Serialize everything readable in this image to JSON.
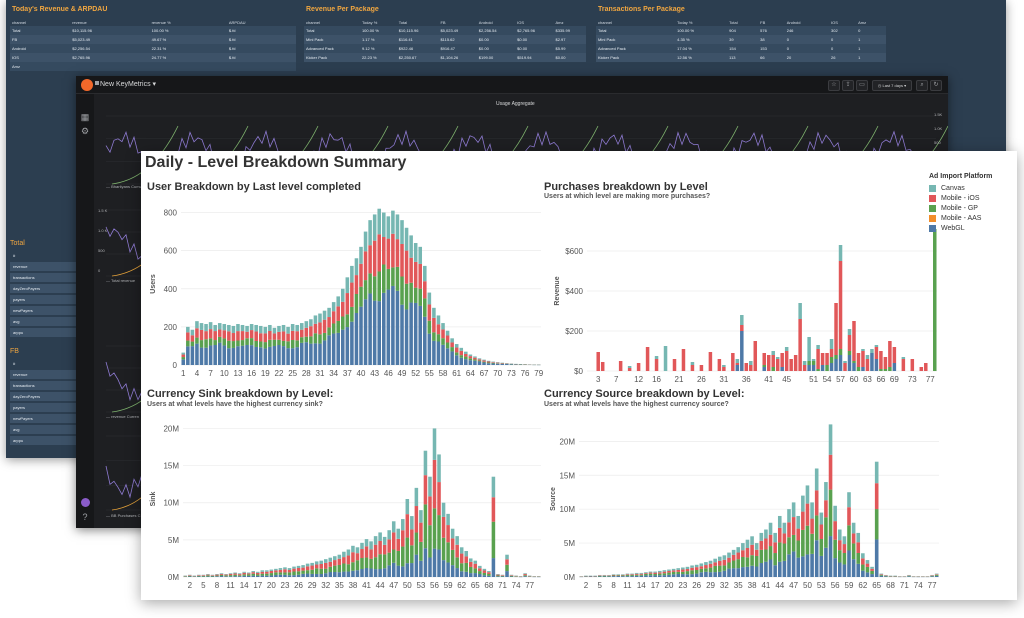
{
  "palette": {
    "Canvas": "#76b7b2",
    "Mobile - iOS": "#e15759",
    "Mobile - GP": "#59a14f",
    "Mobile - AAS": "#f28e2b",
    "WebGL": "#4e79a7"
  },
  "back_dashboard": {
    "panels": [
      {
        "title": "Today's Revenue & ARPDAU",
        "columns": [
          "channel",
          "revenue",
          "revenue %",
          "ARPDAU"
        ],
        "rows": [
          [
            "Total",
            "$10,115.96",
            "100.00 %",
            "$.fd"
          ],
          [
            "FB",
            "$5,023.49",
            "49.67 %",
            "$.fd"
          ],
          [
            "Android",
            "$2,256.54",
            "22.31 %",
            "$.fd"
          ],
          [
            "IOS",
            "$2,765.96",
            "24.77 %",
            "$.fd"
          ],
          [
            "Amz",
            "",
            "",
            ""
          ]
        ]
      },
      {
        "title": "Revenue Per Package",
        "columns": [
          "channel",
          "Today %",
          "Total",
          "FB",
          "Android",
          "IOS",
          "Amz"
        ],
        "rows": [
          [
            "Total",
            "100.00 %",
            "$10,115.96",
            "$5,023.49",
            "$2,256.54",
            "$2,765.96",
            "$335.99"
          ],
          [
            "Mini Pack",
            "1.17 %",
            "$116.41",
            "$115.62",
            "$0.00",
            "$0.00",
            "$2.97"
          ],
          [
            "Advanced Pack",
            "9.12 %",
            "$922.46",
            "$916.47",
            "$0.00",
            "$0.00",
            "$5.99"
          ],
          [
            "Kicker Pack",
            "22.23 %",
            "$2,250.67",
            "$1,104.26",
            "$199.00",
            "$519.94",
            "$0.00"
          ]
        ]
      },
      {
        "title": "Transactions Per Package",
        "columns": [
          "channel",
          "Today %",
          "Total",
          "FB",
          "Android",
          "IOS",
          "Amz"
        ],
        "rows": [
          [
            "Total",
            "100.00 %",
            "904",
            "576",
            "246",
            "302",
            "0"
          ],
          [
            "Mini Pack",
            "4.35 %",
            "39",
            "38",
            "0",
            "0",
            "1"
          ],
          [
            "Advanced Pack",
            "17.04 %",
            "154",
            "153",
            "0",
            "0",
            "1"
          ],
          [
            "Kicker Pack",
            "12.56 %",
            "113",
            "66",
            "20",
            "26",
            "1"
          ]
        ]
      }
    ],
    "side_groups": [
      {
        "title": "Total",
        "rows": [
          "#",
          "revenue",
          "transactions",
          "dayZeroPayers",
          "payers",
          "newPayers",
          "avg",
          "arppu"
        ]
      },
      {
        "title": "FB",
        "rows": [
          "#",
          "revenue",
          "transactions",
          "dayZeroPayers",
          "payers",
          "newPayers",
          "avg",
          "arppu"
        ]
      }
    ]
  },
  "mid_dashboard": {
    "title": "New KeyMetrics",
    "time_range": "Last 7 days",
    "panel_title": "Usage Aggregate",
    "right_ticks": [
      "1.5K",
      "1.0K",
      "500"
    ],
    "left_ticks": [
      "1.5 K",
      "1.0 K",
      "500",
      "0"
    ],
    "legends": [
      "Bhartiyans Cumul",
      "Total revenue",
      "revenue Curren",
      "BB Purchases C"
    ]
  },
  "front_dashboard": {
    "title": "Daily - Level Breakdown Summary",
    "legend_title": "Ad Import Platform",
    "legend": [
      "Canvas",
      "Mobile - iOS",
      "Mobile - GP",
      "Mobile - AAS",
      "WebGL"
    ],
    "icons": [
      "stacked-bar-chart-icon"
    ]
  },
  "chart_data": [
    {
      "id": "user-breakdown",
      "type": "bar",
      "stacked": true,
      "title": "User Breakdown by Last level completed",
      "subtitle": "",
      "xlabel": "",
      "ylabel": "Users",
      "ylim": [
        0,
        850
      ],
      "yticks": [
        0,
        200,
        400,
        600,
        800
      ],
      "ytick_labels": [
        "0",
        "200",
        "400",
        "600",
        "800"
      ],
      "x_start": 1,
      "x_count": 79,
      "xtick_labels": [
        "1",
        "4",
        "7",
        "10",
        "13",
        "16",
        "19",
        "22",
        "25",
        "28",
        "31",
        "34",
        "37",
        "40",
        "43",
        "46",
        "49",
        "52",
        "55",
        "58",
        "61",
        "64",
        "67",
        "70",
        "73",
        "76",
        "79"
      ],
      "xtick_step": 3,
      "grid": true,
      "series_order": [
        "WebGL",
        "Mobile - GP",
        "Mobile - iOS",
        "Canvas"
      ],
      "totals": [
        65,
        200,
        185,
        230,
        220,
        215,
        225,
        210,
        220,
        215,
        210,
        205,
        215,
        210,
        205,
        215,
        210,
        205,
        200,
        210,
        195,
        205,
        210,
        200,
        215,
        210,
        220,
        230,
        240,
        260,
        270,
        285,
        300,
        330,
        360,
        400,
        460,
        520,
        560,
        620,
        700,
        760,
        790,
        820,
        800,
        780,
        810,
        790,
        760,
        720,
        680,
        640,
        620,
        520,
        380,
        300,
        260,
        220,
        180,
        140,
        110,
        90,
        70,
        55,
        45,
        35,
        28,
        22,
        18,
        15,
        12,
        10,
        8,
        6,
        5,
        4,
        3,
        2,
        2
      ],
      "shares": {
        "WebGL": 0.47,
        "Mobile - GP": 0.16,
        "Mobile - iOS": 0.21,
        "Canvas": 0.16
      }
    },
    {
      "id": "purchases-breakdown",
      "type": "bar",
      "stacked": true,
      "title": "Purchases breakdown by Level",
      "subtitle": "Users at which level are making more purchases?",
      "xlabel": "",
      "ylabel": "Revenue",
      "ylim": [
        0,
        800
      ],
      "yticks": [
        0,
        200,
        400,
        600
      ],
      "ytick_labels": [
        "$0",
        "$200",
        "$400",
        "$600"
      ],
      "x_start": 1,
      "x_count": 78,
      "xtick_labels": [
        "3",
        "7",
        "12",
        "16",
        "21",
        "26",
        "31",
        "36",
        "41",
        "45",
        "51",
        "54",
        "57",
        "60",
        "63",
        "66",
        "69",
        "73",
        "77"
      ],
      "xtick_positions": [
        3,
        7,
        12,
        16,
        21,
        26,
        31,
        36,
        41,
        45,
        51,
        54,
        57,
        60,
        63,
        66,
        69,
        73,
        77
      ],
      "grid": true,
      "bars": [
        {
          "x": 3,
          "WebGL": 0,
          "Mobile - GP": 0,
          "Mobile - iOS": 95,
          "Canvas": 0
        },
        {
          "x": 4,
          "WebGL": 0,
          "Mobile - GP": 0,
          "Mobile - iOS": 45,
          "Canvas": 0
        },
        {
          "x": 8,
          "WebGL": 0,
          "Mobile - GP": 0,
          "Mobile - iOS": 50,
          "Canvas": 0
        },
        {
          "x": 10,
          "WebGL": 0,
          "Mobile - GP": 0,
          "Mobile - iOS": 15,
          "Canvas": 10
        },
        {
          "x": 12,
          "WebGL": 0,
          "Mobile - GP": 0,
          "Mobile - iOS": 40,
          "Canvas": 0
        },
        {
          "x": 14,
          "WebGL": 0,
          "Mobile - GP": 0,
          "Mobile - iOS": 120,
          "Canvas": 0
        },
        {
          "x": 16,
          "WebGL": 0,
          "Mobile - GP": 0,
          "Mobile - iOS": 60,
          "Canvas": 15
        },
        {
          "x": 18,
          "WebGL": 0,
          "Mobile - GP": 0,
          "Mobile - iOS": 0,
          "Canvas": 125
        },
        {
          "x": 20,
          "WebGL": 0,
          "Mobile - GP": 0,
          "Mobile - iOS": 60,
          "Canvas": 0
        },
        {
          "x": 22,
          "WebGL": 0,
          "Mobile - GP": 0,
          "Mobile - iOS": 110,
          "Canvas": 0
        },
        {
          "x": 24,
          "WebGL": 0,
          "Mobile - GP": 0,
          "Mobile - iOS": 30,
          "Canvas": 15
        },
        {
          "x": 26,
          "WebGL": 0,
          "Mobile - GP": 0,
          "Mobile - iOS": 30,
          "Canvas": 0
        },
        {
          "x": 28,
          "WebGL": 0,
          "Mobile - GP": 0,
          "Mobile - iOS": 95,
          "Canvas": 0
        },
        {
          "x": 30,
          "WebGL": 0,
          "Mobile - GP": 0,
          "Mobile - iOS": 60,
          "Canvas": 0
        },
        {
          "x": 31,
          "WebGL": 0,
          "Mobile - GP": 0,
          "Mobile - iOS": 20,
          "Canvas": 10
        },
        {
          "x": 33,
          "WebGL": 0,
          "Mobile - GP": 0,
          "Mobile - iOS": 90,
          "Canvas": 0
        },
        {
          "x": 34,
          "WebGL": 30,
          "Mobile - GP": 0,
          "Mobile - iOS": 10,
          "Canvas": 20
        },
        {
          "x": 35,
          "WebGL": 200,
          "Mobile - GP": 0,
          "Mobile - iOS": 30,
          "Canvas": 50
        },
        {
          "x": 36,
          "WebGL": 0,
          "Mobile - GP": 0,
          "Mobile - iOS": 40,
          "Canvas": 0
        },
        {
          "x": 37,
          "WebGL": 0,
          "Mobile - GP": 0,
          "Mobile - iOS": 30,
          "Canvas": 20
        },
        {
          "x": 38,
          "WebGL": 0,
          "Mobile - GP": 0,
          "Mobile - iOS": 150,
          "Canvas": 0
        },
        {
          "x": 40,
          "WebGL": 20,
          "Mobile - GP": 10,
          "Mobile - iOS": 60,
          "Canvas": 0
        },
        {
          "x": 41,
          "WebGL": 0,
          "Mobile - GP": 0,
          "Mobile - iOS": 80,
          "Canvas": 0
        },
        {
          "x": 42,
          "WebGL": 0,
          "Mobile - GP": 20,
          "Mobile - iOS": 60,
          "Canvas": 20
        },
        {
          "x": 43,
          "WebGL": 0,
          "Mobile - GP": 0,
          "Mobile - iOS": 60,
          "Canvas": 10
        },
        {
          "x": 44,
          "WebGL": 20,
          "Mobile - GP": 0,
          "Mobile - iOS": 70,
          "Canvas": 0
        },
        {
          "x": 45,
          "WebGL": 0,
          "Mobile - GP": 0,
          "Mobile - iOS": 100,
          "Canvas": 20
        },
        {
          "x": 46,
          "WebGL": 0,
          "Mobile - GP": 0,
          "Mobile - iOS": 60,
          "Canvas": 0
        },
        {
          "x": 47,
          "WebGL": 0,
          "Mobile - GP": 0,
          "Mobile - iOS": 80,
          "Canvas": 0
        },
        {
          "x": 48,
          "WebGL": 0,
          "Mobile - GP": 0,
          "Mobile - iOS": 260,
          "Canvas": 80
        },
        {
          "x": 49,
          "WebGL": 0,
          "Mobile - GP": 0,
          "Mobile - iOS": 30,
          "Canvas": 20
        },
        {
          "x": 50,
          "WebGL": 30,
          "Mobile - GP": 20,
          "Mobile - iOS": 0,
          "Canvas": 120
        },
        {
          "x": 51,
          "WebGL": 30,
          "Mobile - GP": 20,
          "Mobile - iOS": 0,
          "Canvas": 10
        },
        {
          "x": 52,
          "WebGL": 0,
          "Mobile - GP": 10,
          "Mobile - iOS": 100,
          "Canvas": 20
        },
        {
          "x": 53,
          "WebGL": 30,
          "Mobile - GP": 0,
          "Mobile - iOS": 60,
          "Canvas": 0
        },
        {
          "x": 54,
          "WebGL": 0,
          "Mobile - GP": 30,
          "Mobile - iOS": 60,
          "Canvas": 0
        },
        {
          "x": 55,
          "WebGL": 40,
          "Mobile - GP": 30,
          "Mobile - iOS": 40,
          "Canvas": 50
        },
        {
          "x": 56,
          "WebGL": 60,
          "Mobile - GP": 20,
          "Mobile - iOS": 260,
          "Canvas": 0
        },
        {
          "x": 57,
          "WebGL": 80,
          "Mobile - GP": 30,
          "Mobile - iOS": 440,
          "Canvas": 80
        },
        {
          "x": 58,
          "WebGL": 0,
          "Mobile - GP": 0,
          "Mobile - iOS": 40,
          "Canvas": 10
        },
        {
          "x": 59,
          "WebGL": 80,
          "Mobile - GP": 20,
          "Mobile - iOS": 80,
          "Canvas": 30
        },
        {
          "x": 60,
          "WebGL": 40,
          "Mobile - GP": 10,
          "Mobile - iOS": 200,
          "Canvas": 0
        },
        {
          "x": 61,
          "WebGL": 0,
          "Mobile - GP": 20,
          "Mobile - iOS": 70,
          "Canvas": 0
        },
        {
          "x": 62,
          "WebGL": 20,
          "Mobile - GP": 0,
          "Mobile - iOS": 80,
          "Canvas": 10
        },
        {
          "x": 63,
          "WebGL": 0,
          "Mobile - GP": 0,
          "Mobile - iOS": 60,
          "Canvas": 20
        },
        {
          "x": 64,
          "WebGL": 90,
          "Mobile - GP": 0,
          "Mobile - iOS": 0,
          "Canvas": 20
        },
        {
          "x": 65,
          "WebGL": 60,
          "Mobile - GP": 0,
          "Mobile - iOS": 60,
          "Canvas": 10
        },
        {
          "x": 66,
          "WebGL": 0,
          "Mobile - GP": 10,
          "Mobile - iOS": 90,
          "Canvas": 0
        },
        {
          "x": 67,
          "WebGL": 0,
          "Mobile - GP": 10,
          "Mobile - iOS": 60,
          "Canvas": 0
        },
        {
          "x": 68,
          "WebGL": 0,
          "Mobile - GP": 20,
          "Mobile - iOS": 130,
          "Canvas": 0
        },
        {
          "x": 69,
          "WebGL": 40,
          "Mobile - GP": 0,
          "Mobile - iOS": 80,
          "Canvas": 0
        },
        {
          "x": 71,
          "WebGL": 0,
          "Mobile - GP": 0,
          "Mobile - iOS": 60,
          "Canvas": 10
        },
        {
          "x": 73,
          "WebGL": 0,
          "Mobile - GP": 0,
          "Mobile - iOS": 60,
          "Canvas": 0
        },
        {
          "x": 75,
          "WebGL": 0,
          "Mobile - GP": 0,
          "Mobile - iOS": 20,
          "Canvas": 0
        },
        {
          "x": 76,
          "WebGL": 0,
          "Mobile - GP": 0,
          "Mobile - iOS": 40,
          "Canvas": 0
        },
        {
          "x": 78,
          "WebGL": 0,
          "Mobile - GP": 710,
          "Mobile - iOS": 0,
          "Canvas": 0
        }
      ]
    },
    {
      "id": "currency-sink",
      "type": "bar",
      "stacked": true,
      "title": "Currency Sink breakdown by Level:",
      "subtitle": "Users at what levels have the highest currency sink?",
      "xlabel": "",
      "ylabel": "Sink",
      "ylim": [
        0,
        21000000
      ],
      "yticks": [
        0,
        5000000,
        10000000,
        15000000,
        20000000
      ],
      "ytick_labels": [
        "0M",
        "5M",
        "10M",
        "15M",
        "20M"
      ],
      "x_start": 1,
      "x_count": 79,
      "xtick_labels": [
        "2",
        "5",
        "8",
        "11",
        "14",
        "17",
        "20",
        "23",
        "26",
        "29",
        "32",
        "35",
        "38",
        "41",
        "44",
        "47",
        "50",
        "53",
        "56",
        "59",
        "62",
        "65",
        "68",
        "71",
        "74",
        "77"
      ],
      "xtick_step": 3,
      "xtick_first": 2,
      "grid": true,
      "totals_m": [
        0.2,
        0.3,
        0.2,
        0.3,
        0.3,
        0.4,
        0.3,
        0.4,
        0.5,
        0.4,
        0.5,
        0.6,
        0.5,
        0.7,
        0.6,
        0.8,
        0.7,
        0.9,
        0.9,
        1.0,
        1.1,
        1.2,
        1.3,
        1.2,
        1.4,
        1.5,
        1.6,
        1.8,
        1.9,
        2.1,
        2.2,
        2.4,
        2.6,
        2.8,
        3.0,
        3.4,
        3.7,
        4.2,
        4.0,
        4.6,
        5.1,
        4.8,
        5.5,
        6.0,
        5.4,
        6.3,
        7.5,
        6.5,
        7.8,
        10.5,
        8.2,
        12.0,
        9.0,
        17.0,
        13.5,
        20.0,
        16.5,
        10.0,
        8.5,
        6.5,
        5.5,
        4.0,
        3.5,
        2.5,
        2.2,
        1.5,
        1.1,
        0.8,
        13.5,
        0.4,
        0.3,
        3.0,
        0.3,
        0.2,
        0.1,
        0.5,
        0.2,
        0.1,
        0.1
      ],
      "shares": {
        "WebGL": 0.22,
        "Mobile - GP": 0.3,
        "Mobile - iOS": 0.28,
        "Canvas": 0.2
      }
    },
    {
      "id": "currency-source",
      "type": "bar",
      "stacked": true,
      "title": "Currency Source breakdown by Level:",
      "subtitle": "Users at what levels have the highest currency source?",
      "xlabel": "",
      "ylabel": "Source",
      "ylim": [
        0,
        23000000
      ],
      "yticks": [
        0,
        5000000,
        10000000,
        15000000,
        20000000
      ],
      "ytick_labels": [
        "0M",
        "5M",
        "10M",
        "15M",
        "20M"
      ],
      "x_start": 1,
      "x_count": 78,
      "xtick_labels": [
        "2",
        "5",
        "8",
        "11",
        "14",
        "17",
        "20",
        "23",
        "26",
        "29",
        "32",
        "35",
        "38",
        "41",
        "44",
        "47",
        "50",
        "53",
        "56",
        "59",
        "62",
        "65",
        "68",
        "71",
        "74",
        "77"
      ],
      "xtick_step": 3,
      "xtick_first": 2,
      "grid": true,
      "totals_m": [
        0.1,
        0.2,
        0.2,
        0.2,
        0.3,
        0.3,
        0.3,
        0.4,
        0.4,
        0.4,
        0.5,
        0.5,
        0.6,
        0.6,
        0.7,
        0.8,
        0.8,
        0.9,
        1.0,
        1.1,
        1.2,
        1.3,
        1.4,
        1.5,
        1.7,
        1.8,
        2.0,
        2.2,
        2.4,
        2.7,
        3.0,
        3.2,
        3.6,
        4.0,
        4.4,
        5.0,
        5.5,
        6.0,
        5.0,
        6.5,
        7.0,
        8.0,
        6.5,
        9.0,
        8.0,
        10.0,
        11.0,
        9.0,
        12.0,
        13.5,
        11.0,
        16.0,
        9.5,
        14.0,
        22.5,
        10.5,
        7.0,
        6.0,
        12.5,
        8.0,
        6.5,
        3.5,
        2.5,
        1.5,
        17.0,
        0.5,
        0.3,
        0.2,
        0.2,
        0.1,
        0.1,
        0.3,
        0.1,
        0.1,
        0.1,
        0.1,
        0.3,
        0.5
      ],
      "shares": {
        "WebGL": 0.3,
        "Mobile - GP": 0.28,
        "Mobile - iOS": 0.22,
        "Canvas": 0.2
      }
    }
  ]
}
